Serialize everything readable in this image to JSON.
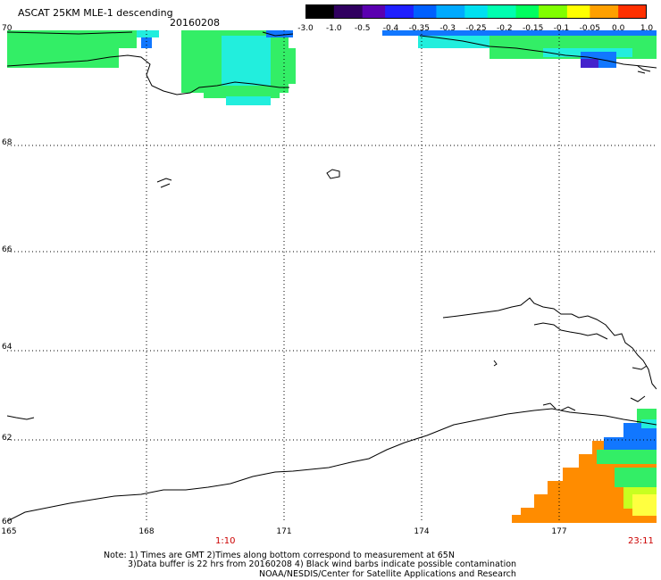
{
  "header": {
    "title": "ASCAT 25KM MLE-1 descending",
    "date": "20160208"
  },
  "colorbar": {
    "labels": [
      "-3.0",
      "-1.0",
      "-0.5",
      "-0.4",
      "-0.35",
      "-0.3",
      "-0.25",
      "-0.2",
      "-0.15",
      "-0.1",
      "-0.05",
      "0.0",
      "1.0"
    ],
    "colors": [
      "#000000",
      "#300060",
      "#5a00b0",
      "#2020ff",
      "#0060ff",
      "#00aaff",
      "#00e0f0",
      "#00ffb0",
      "#00ff60",
      "#80ff00",
      "#ffff00",
      "#ffa000",
      "#ff3000"
    ]
  },
  "axes": {
    "lat_labels": [
      "70",
      "68",
      "66",
      "64",
      "62",
      "60"
    ],
    "lon_labels": [
      "165",
      "168",
      "171",
      "174",
      "177"
    ]
  },
  "time_labels": {
    "start": "1:10",
    "end": "23:11"
  },
  "notes": {
    "line1": "Note: 1) Times are GMT 2)Times along bottom correspond to measurement at 65N",
    "line2": "3)Data buffer is 22 hrs from 20160208 4) Black wind barbs indicate possible contamination",
    "line3": "NOAA/NESDIS/Center for Satellite Applications and Research"
  },
  "colors": {
    "coast": "#000000",
    "grid": "#000000",
    "orange": "#ff8c00",
    "green": "#33ee66",
    "cyan": "#22eedd",
    "blue": "#1177ff"
  }
}
